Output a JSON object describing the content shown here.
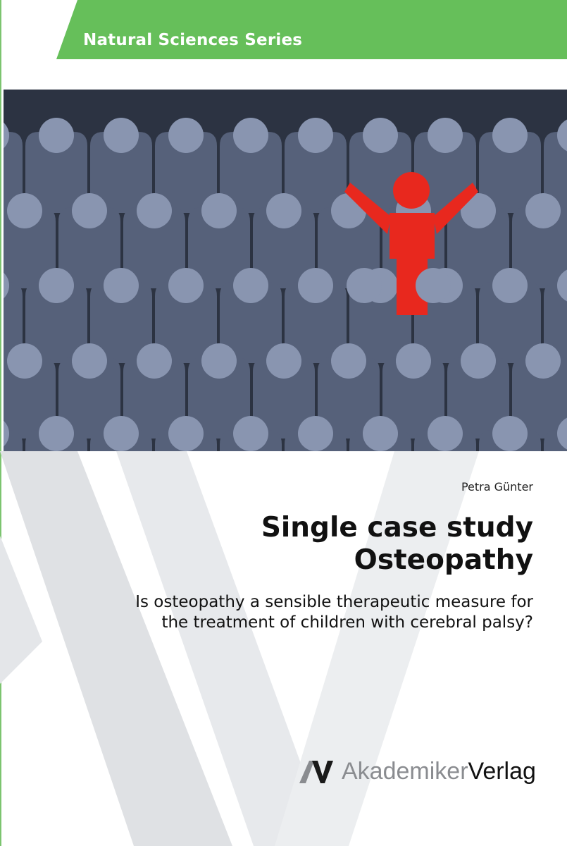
{
  "series": {
    "label": "Natural Sciences Series",
    "color": "#66bf5a"
  },
  "cover_image": {
    "description_icon": "crowd-figures-icon",
    "highlight_color": "#e8281e",
    "crowd_color": "#8995b0"
  },
  "author": "Petra Günter",
  "title": {
    "line1": "Single case study",
    "line2": "Osteopathy"
  },
  "subtitle": {
    "line1": "Is osteopathy a sensible therapeutic measure for",
    "line2": "the treatment of children with cerebral palsy?"
  },
  "publisher": {
    "name_part1": "Akademiker",
    "name_part2": "Verlag",
    "logo": "av-logo-icon"
  }
}
